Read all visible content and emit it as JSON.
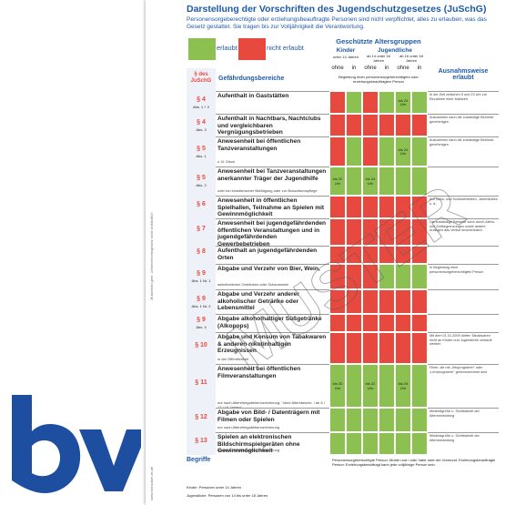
{
  "header": {
    "title": "Darstellung der Vorschriften des Jugendschutzgesetzes (JuSchG)",
    "subtitle": "Personensorgeberechtigte oder erziehungsbeauftragte Personen sind nicht verpflichtet, alles zu erlauben, was das Gesetz gestattet. Sie tragen bis zur Volljährigkeit die Verantwortung."
  },
  "legend": [
    {
      "label": "erlaubt",
      "color": "#8cc152"
    },
    {
      "label": "nicht erlaubt",
      "color": "#e8493f"
    }
  ],
  "table": {
    "group_title": "Geschützte Altersgruppen",
    "kinder": "Kinder",
    "kinder_sub": "unter 14 Jahren",
    "jugendliche": "Jugendliche",
    "age1": "ab 14 unter 16 Jahren",
    "age2": "ab 16 unter 18 Jahren",
    "ohne": "ohne",
    "in": "in",
    "begleitung": "Begleitung einer personensorgeberechtigten oder erziehungsbeauftragten Person",
    "col_para": "§ des JuSchG",
    "col_area": "Gefährdungsbereiche",
    "col_exception": "Ausnahmsweise erlaubt",
    "rows": [
      {
        "para": "§ 4",
        "sub": "Abs. 1 + 2",
        "area": "Aufenthalt in Gaststätten",
        "note": "",
        "cells": [
          "r",
          "g",
          "r",
          "g",
          "g",
          "g"
        ],
        "cell_labels": [
          "",
          "",
          "",
          "",
          "bis 24 Uhr",
          ""
        ],
        "exception": "In der Zeit zwischen 5 und 23 Uhr zur Einnahme einer Mahlzeit"
      },
      {
        "para": "§ 4",
        "sub": "Abs. 3",
        "area": "Aufenthalt in Nachtbars, Nachtclubs und vergleichbaren Vergnügungsbetrieben",
        "note": "",
        "cells": [
          "r",
          "r",
          "r",
          "r",
          "r",
          "r"
        ],
        "cell_labels": [
          "",
          "",
          "",
          "",
          "",
          ""
        ],
        "exception": "Ausnahmen kann die zuständige Behörde genehmigen"
      },
      {
        "para": "§ 5",
        "sub": "Abs. 1",
        "area": "Anwesenheit bei öffentlichen Tanzveranstaltungen",
        "note": "z. B. Disco",
        "cells": [
          "r",
          "g",
          "r",
          "g",
          "g",
          "g"
        ],
        "cell_labels": [
          "",
          "",
          "",
          "",
          "bis 24 Uhr",
          ""
        ],
        "exception": "Ausnahmen kann die zuständige Behörde genehmigen"
      },
      {
        "para": "§ 5",
        "sub": "Abs. 2",
        "area": "Anwesenheit bei Tanzveranstaltungen anerkannter Träger der Jugendhilfe",
        "note": "oder bei künstlerischer Betätigung oder zur Brauchtumspflege",
        "cells": [
          "g",
          "g",
          "g",
          "g",
          "g",
          "g"
        ],
        "cell_labels": [
          "bis 22 Uhr",
          "",
          "bis 24 Uhr",
          "",
          "",
          ""
        ],
        "exception": ""
      },
      {
        "para": "§ 6",
        "sub": "",
        "area": "Anwesenheit in öffentlichen Spielhallen, Teilnahme an Spielen mit Gewinnmöglichkeit",
        "note": "",
        "cells": [
          "r",
          "r",
          "r",
          "r",
          "r",
          "r"
        ],
        "cell_labels": [
          "",
          "",
          "",
          "",
          "",
          ""
        ],
        "exception": "Auf Volks- und Schützenfesten, Jahrmärkten u. ä."
      },
      {
        "para": "§ 7",
        "sub": "",
        "area": "Anwesenheit bei jugendgefährdenden öffentlichen Veranstaltungen und in jugendgefährdenden Gewerbebetrieben",
        "note": "",
        "cells": [
          "r",
          "r",
          "r",
          "r",
          "r",
          "r"
        ],
        "cell_labels": [
          "",
          "",
          "",
          "",
          "",
          ""
        ],
        "exception": "Die zuständige Behörde kann durch Alters- und Zeitbegrenzungen sowie andere Auflagen das Verbot einschränken."
      },
      {
        "para": "§ 8",
        "sub": "",
        "area": "Aufenthalt an jugendgefährdenden Orten",
        "note": "",
        "cells": [
          "r",
          "r",
          "r",
          "r",
          "r",
          "r"
        ],
        "cell_labels": [
          "",
          "",
          "",
          "",
          "",
          ""
        ],
        "exception": ""
      },
      {
        "para": "§ 9",
        "sub": "Abs. 1 Nr. 1",
        "area": "Abgabe und Verzehr von Bier, Wein,",
        "note": "weinähnlichen Getränken oder Schaumwein",
        "cells": [
          "r",
          "r",
          "r",
          "g",
          "g",
          "g"
        ],
        "cell_labels": [
          "",
          "",
          "",
          "",
          "",
          ""
        ],
        "exception": "In Begleitung einer personensorgeberechtigten Person"
      },
      {
        "para": "§ 9",
        "sub": "Abs. 1 Nr. 2",
        "area": "Abgabe und Verzehr anderer alkoholischer Getränke oder Lebensmittel",
        "note": "",
        "cells": [
          "r",
          "r",
          "r",
          "r",
          "r",
          "r"
        ],
        "cell_labels": [
          "",
          "",
          "",
          "",
          "",
          ""
        ],
        "exception": ""
      },
      {
        "para": "§ 9",
        "sub": "Abs. 4",
        "area": "Abgabe alkoholhaltiger Süßgetränke (Alkopops)",
        "note": "",
        "cells": [
          "r",
          "r",
          "r",
          "r",
          "r",
          "r"
        ],
        "cell_labels": [
          "",
          "",
          "",
          "",
          "",
          ""
        ],
        "exception": ""
      },
      {
        "para": "§ 10",
        "sub": "",
        "area": "Abgabe und Konsum von Tabakwaren & anderen nikotinhaltigen Erzeugnissen",
        "note": "in der Öffentlichkeit",
        "cells": [
          "r",
          "r",
          "r",
          "r",
          "r",
          "r"
        ],
        "cell_labels": [
          "",
          "",
          "",
          "",
          "",
          ""
        ],
        "exception": "Mit dem 01.01.2009 dürfen Tabakwaren nicht an Kinder und Jugendliche verkauft werden"
      },
      {
        "para": "§ 11",
        "sub": "",
        "area": "Anwesenheit bei öffentlichen Filmveranstaltungen",
        "note": "nur nach Altersfreigabekennzeichnung: \"ohne Altersbeschr. / ab 6 / 12 / 16 Jahren\"",
        "cells": [
          "g",
          "g",
          "g",
          "g",
          "g",
          "g"
        ],
        "cell_labels": [
          "bis 20 Uhr",
          "",
          "bis 22 Uhr",
          "",
          "bis 24 Uhr",
          ""
        ],
        "exception": "Filme, die mit „Infoprogramm\" oder „Lehrprogramm\" gekennzeichnet sind"
      },
      {
        "para": "§ 12",
        "sub": "",
        "area": "Abgabe von Bild- / Datenträgern mit Filmen oder Spielen",
        "note": "nur nach Altersfreigabekennzeichnung",
        "cells": [
          "g",
          "g",
          "g",
          "g",
          "g",
          "g"
        ],
        "cell_labels": [
          "",
          "",
          "",
          "",
          "",
          ""
        ],
        "exception": "Mindestgröße u. Sichtbarkeit der Alterseinstufung"
      },
      {
        "para": "§ 13",
        "sub": "",
        "area": "Spielen an elektronischen Bildschirmspielgeräten ohne Gewinnmöglichkeit",
        "note": "nur nach Altersfreigabekennzeichnung",
        "cells": [
          "g",
          "g",
          "g",
          "g",
          "g",
          "g"
        ],
        "cell_labels": [
          "",
          "",
          "",
          "",
          "",
          ""
        ],
        "exception": "Mindestgröße u. Sichtbarkeit der Alterseinstufung"
      }
    ]
  },
  "footer": {
    "title": "Begriffe",
    "kinder": "Kinder: Personen unter 14 Jahren",
    "jugendliche": "Jugendliche: Personen von 14 bis unter 18 Jahren",
    "right": "Personensorgeberechtigte Person: Mutter und / oder Vater oder der Vormund. Erziehungsbeauftragte Person: Erziehungsbeauftragt kann jede volljährige Person sein."
  },
  "stamp": "MUSTER",
  "side_note": "Musterbild gem. Urheberrechtsgesetz nicht verkäuflich",
  "side_url": "www.formulare-bv.de"
}
